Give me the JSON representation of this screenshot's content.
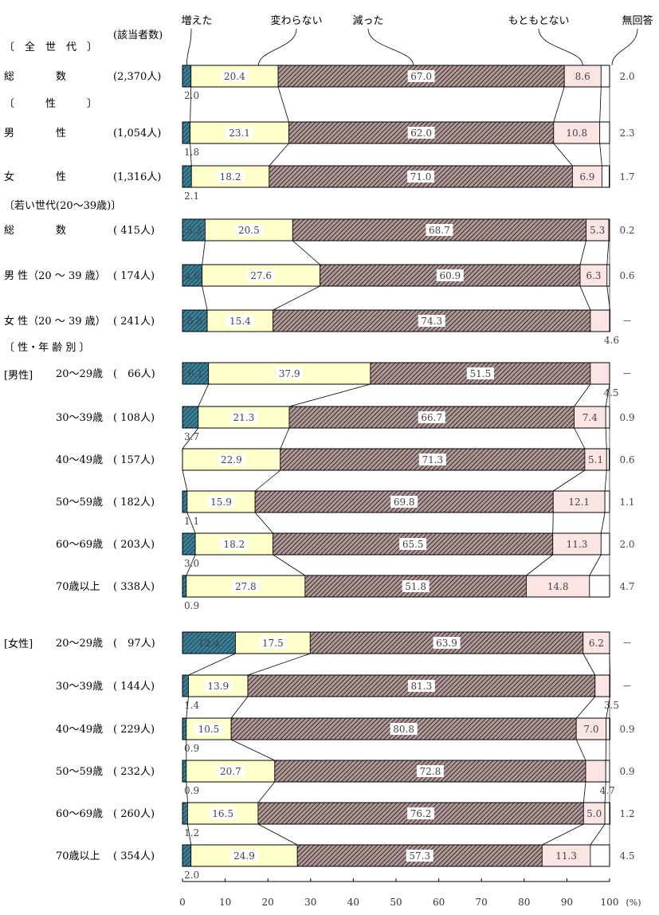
{
  "chart_data": {
    "type": "bar",
    "orientation": "horizontal",
    "stacked": true,
    "unit": "(%)",
    "count_header": "(該当者数)",
    "xlim": [
      0,
      100
    ],
    "xticks": [
      "0",
      "10",
      "20",
      "30",
      "40",
      "50",
      "60",
      "70",
      "80",
      "90",
      "100"
    ],
    "series": [
      {
        "name": "増えた",
        "color": "#3d7f96",
        "pattern": "diag-blue"
      },
      {
        "name": "変わらない",
        "color": "#ffffcc",
        "pattern": "none"
      },
      {
        "name": "減った",
        "color": "#8c6e6e",
        "pattern": "diag-brown"
      },
      {
        "name": "もともとない",
        "color": "#fbe4e4",
        "pattern": "none"
      },
      {
        "name": "無回答",
        "color": "#ffffff",
        "pattern": "none"
      }
    ],
    "sections": [
      "〔　全　世　代　〕",
      "〔　　　性　　　〕",
      "〔若い世代(20～39歳)〕",
      "〔 性・年 齢 別 〕",
      "[男性]",
      "[女性]"
    ],
    "rows": [
      {
        "label": "総　　　　数",
        "count": "(2,370人)",
        "values": [
          2.0,
          20.4,
          67.0,
          8.6,
          2.0
        ],
        "labels": [
          "2.0",
          "20.4",
          "67.0",
          "8.6",
          "2.0"
        ]
      },
      {
        "label": "男　　　　性",
        "count": "(1,054人)",
        "values": [
          1.8,
          23.1,
          62.0,
          10.8,
          2.3
        ],
        "labels": [
          "1.8",
          "23.1",
          "62.0",
          "10.8",
          "2.3"
        ]
      },
      {
        "label": "女　　　　性",
        "count": "(1,316人)",
        "values": [
          2.1,
          18.2,
          71.0,
          6.9,
          1.7
        ],
        "labels": [
          "2.1",
          "18.2",
          "71.0",
          "6.9",
          "1.7"
        ]
      },
      {
        "label": "総　　　　数",
        "count": "( 415人)",
        "values": [
          5.3,
          20.5,
          68.7,
          5.3,
          0.2
        ],
        "labels": [
          "5.3",
          "20.5",
          "68.7",
          "5.3",
          "0.2"
        ]
      },
      {
        "label": "男 性（20 ～ 39 歳）",
        "count": "( 174人)",
        "values": [
          4.6,
          27.6,
          60.9,
          6.3,
          0.6
        ],
        "labels": [
          "4.6",
          "27.6",
          "60.9",
          "6.3",
          "0.6"
        ]
      },
      {
        "label": "女 性（20 ～ 39 歳）",
        "count": "( 241人)",
        "values": [
          5.8,
          15.4,
          74.3,
          4.6,
          0
        ],
        "labels": [
          "5.8",
          "15.4",
          "74.3",
          "4.6",
          "－"
        ]
      },
      {
        "label": "20～29歳",
        "count": "(　66人)",
        "values": [
          6.1,
          37.9,
          51.5,
          4.5,
          0
        ],
        "labels": [
          "6.1",
          "37.9",
          "51.5",
          "4.5",
          "－"
        ]
      },
      {
        "label": "30～39歳",
        "count": "( 108人)",
        "values": [
          3.7,
          21.3,
          66.7,
          7.4,
          0.9
        ],
        "labels": [
          "3.7",
          "21.3",
          "66.7",
          "7.4",
          "0.9"
        ]
      },
      {
        "label": "40～49歳",
        "count": "( 157人)",
        "values": [
          0,
          22.9,
          71.3,
          5.1,
          0.6
        ],
        "labels": [
          "－",
          "22.9",
          "71.3",
          "5.1",
          "0.6"
        ]
      },
      {
        "label": "50～59歳",
        "count": "( 182人)",
        "values": [
          1.1,
          15.9,
          69.8,
          12.1,
          1.1
        ],
        "labels": [
          "1.1",
          "15.9",
          "69.8",
          "12.1",
          "1.1"
        ]
      },
      {
        "label": "60～69歳",
        "count": "( 203人)",
        "values": [
          3.0,
          18.2,
          65.5,
          11.3,
          2.0
        ],
        "labels": [
          "3.0",
          "18.2",
          "65.5",
          "11.3",
          "2.0"
        ]
      },
      {
        "label": "70歳以上",
        "count": "( 338人)",
        "values": [
          0.9,
          27.8,
          51.8,
          14.8,
          4.7
        ],
        "labels": [
          "0.9",
          "27.8",
          "51.8",
          "14.8",
          "4.7"
        ]
      },
      {
        "label": "20～29歳",
        "count": "(　97人)",
        "values": [
          12.4,
          17.5,
          63.9,
          6.2,
          0
        ],
        "labels": [
          "12.4",
          "17.5",
          "63.9",
          "6.2",
          "－"
        ]
      },
      {
        "label": "30～39歳",
        "count": "( 144人)",
        "values": [
          1.4,
          13.9,
          81.3,
          3.5,
          0
        ],
        "labels": [
          "1.4",
          "13.9",
          "81.3",
          "3.5",
          "－"
        ]
      },
      {
        "label": "40～49歳",
        "count": "( 229人)",
        "values": [
          0.9,
          10.5,
          80.8,
          7.0,
          0.9
        ],
        "labels": [
          "0.9",
          "10.5",
          "80.8",
          "7.0",
          "0.9"
        ]
      },
      {
        "label": "50～59歳",
        "count": "( 232人)",
        "values": [
          0.9,
          20.7,
          72.8,
          4.7,
          0.9
        ],
        "labels": [
          "0.9",
          "20.7",
          "72.8",
          "4.7",
          "0.9"
        ]
      },
      {
        "label": "60～69歳",
        "count": "( 260人)",
        "values": [
          1.2,
          16.5,
          76.2,
          5.0,
          1.2
        ],
        "labels": [
          "1.2",
          "16.5",
          "76.2",
          "5.0",
          "1.2"
        ]
      },
      {
        "label": "70歳以上",
        "count": "( 354人)",
        "values": [
          2.0,
          24.9,
          57.3,
          11.3,
          4.5
        ],
        "labels": [
          "2.0",
          "24.9",
          "57.3",
          "11.3",
          "4.5"
        ]
      }
    ]
  }
}
